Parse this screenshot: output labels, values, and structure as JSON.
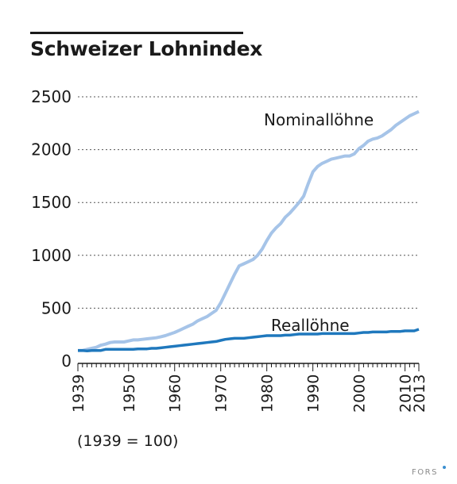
{
  "chart_data": {
    "type": "line",
    "title": "Schweizer Lohnindex",
    "note": "(1939 = 100)",
    "source_logo": "FORS",
    "xlim": [
      1939,
      2013
    ],
    "ylim": [
      0,
      2500
    ],
    "yticks": [
      0,
      500,
      1000,
      1500,
      2000,
      2500
    ],
    "xticks": [
      1939,
      1950,
      1960,
      1970,
      1980,
      1990,
      2000,
      2010,
      2013
    ],
    "grid": "horizontal dotted",
    "colors": {
      "nominal": "#a6c4e8",
      "real": "#1f78bd"
    },
    "series": [
      {
        "name": "Nominallöhne",
        "x": [
          1939,
          1940,
          1941,
          1942,
          1943,
          1944,
          1945,
          1946,
          1947,
          1948,
          1949,
          1950,
          1951,
          1952,
          1953,
          1954,
          1955,
          1956,
          1957,
          1958,
          1959,
          1960,
          1961,
          1962,
          1963,
          1964,
          1965,
          1966,
          1967,
          1968,
          1969,
          1970,
          1971,
          1972,
          1973,
          1974,
          1975,
          1976,
          1977,
          1978,
          1979,
          1980,
          1981,
          1982,
          1983,
          1984,
          1985,
          1986,
          1987,
          1988,
          1989,
          1990,
          1991,
          1992,
          1993,
          1994,
          1995,
          1996,
          1997,
          1998,
          1999,
          2000,
          2001,
          2002,
          2003,
          2004,
          2005,
          2006,
          2007,
          2008,
          2009,
          2010,
          2011,
          2012,
          2013
        ],
        "values": [
          100,
          100,
          110,
          120,
          130,
          150,
          160,
          175,
          180,
          180,
          180,
          190,
          200,
          200,
          205,
          210,
          215,
          220,
          230,
          240,
          255,
          270,
          290,
          310,
          330,
          350,
          380,
          400,
          420,
          450,
          480,
          550,
          640,
          730,
          820,
          900,
          920,
          940,
          960,
          1000,
          1060,
          1140,
          1210,
          1260,
          1300,
          1360,
          1400,
          1450,
          1500,
          1560,
          1680,
          1790,
          1840,
          1870,
          1890,
          1910,
          1920,
          1930,
          1940,
          1940,
          1960,
          2010,
          2040,
          2080,
          2100,
          2110,
          2130,
          2160,
          2190,
          2230,
          2260,
          2290,
          2320,
          2340,
          2360
        ]
      },
      {
        "name": "Reallöhne",
        "x": [
          1939,
          1940,
          1941,
          1942,
          1943,
          1944,
          1945,
          1946,
          1947,
          1948,
          1949,
          1950,
          1951,
          1952,
          1953,
          1954,
          1955,
          1956,
          1957,
          1958,
          1959,
          1960,
          1961,
          1962,
          1963,
          1964,
          1965,
          1966,
          1967,
          1968,
          1969,
          1970,
          1971,
          1972,
          1973,
          1974,
          1975,
          1976,
          1977,
          1978,
          1979,
          1980,
          1981,
          1982,
          1983,
          1984,
          1985,
          1986,
          1987,
          1988,
          1989,
          1990,
          1991,
          1992,
          1993,
          1994,
          1995,
          1996,
          1997,
          1998,
          1999,
          2000,
          2001,
          2002,
          2003,
          2004,
          2005,
          2006,
          2007,
          2008,
          2009,
          2010,
          2011,
          2012,
          2013
        ],
        "values": [
          100,
          100,
          95,
          100,
          100,
          100,
          110,
          110,
          110,
          110,
          110,
          110,
          110,
          115,
          115,
          115,
          120,
          120,
          125,
          130,
          135,
          140,
          145,
          150,
          155,
          160,
          165,
          170,
          175,
          180,
          185,
          195,
          205,
          210,
          215,
          215,
          215,
          220,
          225,
          230,
          235,
          240,
          240,
          240,
          240,
          245,
          245,
          250,
          255,
          255,
          255,
          255,
          255,
          260,
          260,
          260,
          260,
          260,
          260,
          260,
          260,
          265,
          270,
          270,
          275,
          275,
          275,
          275,
          280,
          280,
          280,
          285,
          285,
          285,
          300
        ]
      }
    ]
  }
}
